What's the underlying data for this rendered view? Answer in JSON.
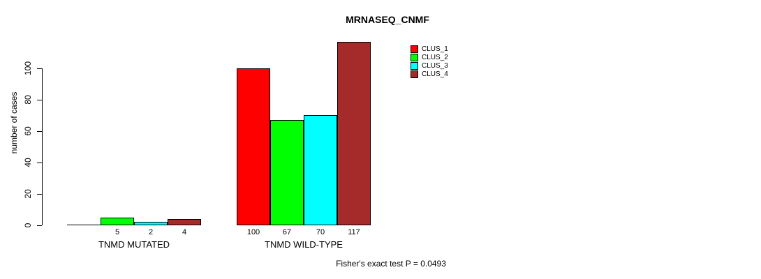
{
  "chart_data": {
    "type": "bar",
    "title": "MRNASEQ_CNMF",
    "xlabel": "",
    "ylabel": "number of cases",
    "annotation": "Fisher's exact test P = 0.0493",
    "ylim": [
      0,
      100
    ],
    "yticks": [
      0,
      20,
      40,
      60,
      80,
      100
    ],
    "grid": false,
    "legend_position": "top-right",
    "categories": [
      "TNMD MUTATED",
      "TNMD WILD-TYPE"
    ],
    "series": [
      {
        "name": "CLUS_1",
        "color": "#FF0000",
        "values": [
          0,
          100
        ]
      },
      {
        "name": "CLUS_2",
        "color": "#00FF00",
        "values": [
          5,
          67
        ]
      },
      {
        "name": "CLUS_3",
        "color": "#00FFFF",
        "values": [
          2,
          70
        ]
      },
      {
        "name": "CLUS_4",
        "color": "#A52A2A",
        "values": [
          4,
          117
        ]
      }
    ],
    "bar_value_labels": [
      [
        "",
        "5",
        "2",
        "4"
      ],
      [
        "100",
        "67",
        "70",
        "117"
      ]
    ]
  }
}
